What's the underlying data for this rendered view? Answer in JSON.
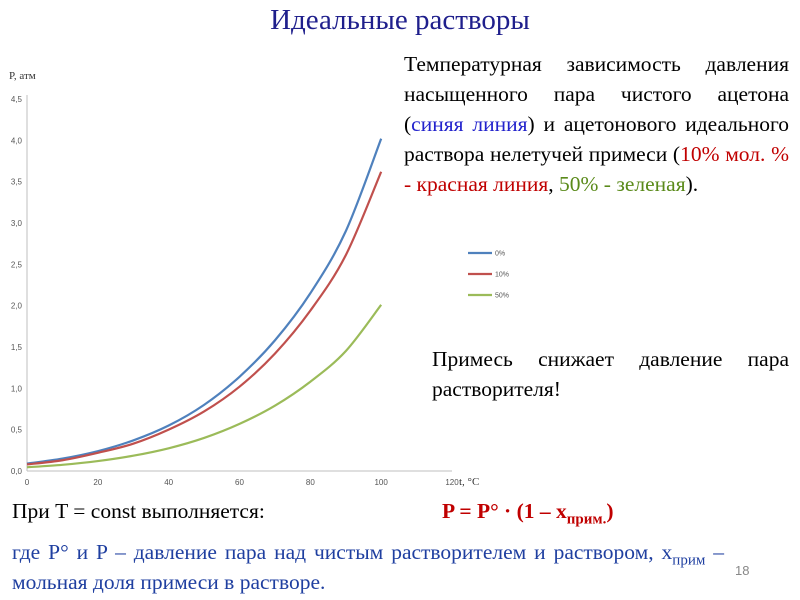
{
  "slide": {
    "title": "Идеальные растворы",
    "desc_part1": "Температурная зависимость давления насыщенного пара чистого ацетона (",
    "desc_blue": "синяя линия",
    "desc_part2": ") и ацетонового идеального раствора нелетучей примеси (",
    "desc_red": "10% мол. % - красная линия",
    "desc_part3": ", ",
    "desc_green": "50% - зеленая",
    "desc_part4": ").",
    "note": "Примесь снижает давление пара растворителя!",
    "condition": "При T = const выполняется:",
    "formula_main": "P = P° · (1 – x",
    "formula_sub": "прим.",
    "formula_end": ")",
    "where_part1": "где P° и P – давление пара над чистым растворителем и раствором, x",
    "where_sub": "прим",
    "where_part2": " – мольная доля примеси в растворе.",
    "page_number": "18"
  },
  "chart_data": {
    "type": "line",
    "ylabel": "P, атм",
    "xlabel": "t, °C",
    "xlim": [
      0,
      120
    ],
    "ylim": [
      0,
      4.5
    ],
    "x_ticks": [
      "0",
      "20",
      "40",
      "60",
      "80",
      "100",
      "120"
    ],
    "y_ticks": [
      "0,0",
      "0,5",
      "1,0",
      "1,5",
      "2,0",
      "2,5",
      "3,0",
      "3,5",
      "4,0",
      "4,5"
    ],
    "legend_position": "right",
    "x": [
      0,
      10,
      20,
      30,
      40,
      50,
      60,
      70,
      80,
      90,
      100
    ],
    "series": [
      {
        "name": "0%",
        "color": "#4f81bd",
        "values": [
          0.09,
          0.15,
          0.24,
          0.37,
          0.55,
          0.8,
          1.14,
          1.58,
          2.15,
          2.9,
          4.02
        ]
      },
      {
        "name": "10%",
        "color": "#c0504d",
        "values": [
          0.08,
          0.13,
          0.22,
          0.33,
          0.5,
          0.72,
          1.02,
          1.42,
          1.94,
          2.61,
          3.62
        ]
      },
      {
        "name": "50%",
        "color": "#9bbb59",
        "values": [
          0.045,
          0.075,
          0.12,
          0.185,
          0.275,
          0.4,
          0.57,
          0.79,
          1.08,
          1.45,
          2.01
        ]
      }
    ]
  }
}
